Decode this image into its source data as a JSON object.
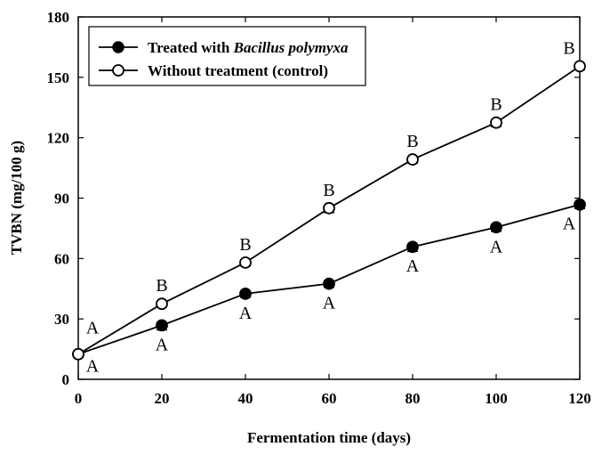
{
  "chart_data": {
    "type": "line",
    "title": "",
    "xlabel": "Fermentation time (days)",
    "ylabel": "TVBN (mg/100 g)",
    "xlim": [
      0,
      120
    ],
    "ylim": [
      0,
      180
    ],
    "xticks": [
      0,
      20,
      40,
      60,
      80,
      100,
      120
    ],
    "yticks": [
      0,
      30,
      60,
      90,
      120,
      150,
      180
    ],
    "x": [
      0,
      20,
      40,
      60,
      80,
      100,
      120
    ],
    "series": [
      {
        "name": "Treated with Bacillus polymyxa",
        "name_prefix": "Treated with ",
        "name_italic": "Bacillus polymyxa",
        "marker": "filled-circle",
        "values": [
          12.5,
          26.8,
          42.5,
          47.5,
          65.8,
          75.5,
          86.8
        ],
        "errors": [
          1.5,
          2.3,
          1.8,
          1.8,
          2.3,
          2.0,
          2.0
        ],
        "significance": [
          "A",
          "A",
          "A",
          "A",
          "A",
          "A",
          "A"
        ],
        "label_side": [
          "below",
          "below",
          "below",
          "below",
          "below",
          "below",
          "below"
        ]
      },
      {
        "name": "Without treatment (control)",
        "marker": "open-circle",
        "values": [
          12.5,
          37.5,
          58.0,
          85.0,
          109.2,
          127.5,
          155.5
        ],
        "errors": [
          1.5,
          1.5,
          1.8,
          2.2,
          1.8,
          2.0,
          1.8
        ],
        "significance": [
          "A",
          "B",
          "B",
          "B",
          "B",
          "B",
          "B"
        ],
        "label_side": [
          "above",
          "above",
          "above",
          "above",
          "above",
          "above",
          "above"
        ]
      }
    ],
    "legend_position": "top-left",
    "grid": false
  }
}
